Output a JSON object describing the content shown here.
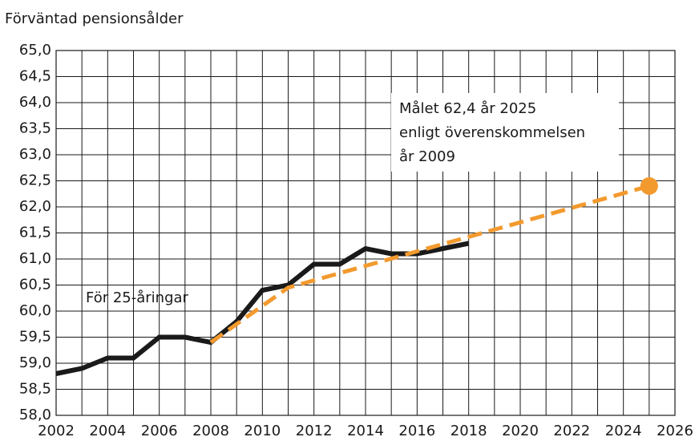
{
  "chart_data": {
    "type": "line",
    "title": "Förväntad pensionsålder",
    "xlim": [
      2002,
      2026
    ],
    "xticks": [
      2002,
      2004,
      2006,
      2008,
      2010,
      2012,
      2014,
      2016,
      2018,
      2020,
      2022,
      2024,
      2026
    ],
    "ylim": [
      58,
      65
    ],
    "yticks": [
      {
        "value": 58,
        "label": "58,0"
      },
      {
        "value": 58.5,
        "label": "58,5"
      },
      {
        "value": 59,
        "label": "59,0"
      },
      {
        "value": 59.5,
        "label": "59,5"
      },
      {
        "value": 60,
        "label": "60,0"
      },
      {
        "value": 60.5,
        "label": "60,5"
      },
      {
        "value": 61,
        "label": "61,0"
      },
      {
        "value": 61.5,
        "label": "61,5"
      },
      {
        "value": 62,
        "label": "62,0"
      },
      {
        "value": 62.5,
        "label": "62,5"
      },
      {
        "value": 63,
        "label": "63,0"
      },
      {
        "value": 63.5,
        "label": "63,5"
      },
      {
        "value": 64,
        "label": "64,0"
      },
      {
        "value": 64.5,
        "label": "64,5"
      },
      {
        "value": 65,
        "label": "65,0"
      }
    ],
    "grid": true,
    "series": [
      {
        "color": "#1a1a1a",
        "dashed": false,
        "end_marker": false,
        "x": [
          2002,
          2003,
          2004,
          2005,
          2006,
          2007,
          2008,
          2009,
          2010,
          2011,
          2012,
          2013,
          2014,
          2015,
          2016,
          2017,
          2018
        ],
        "values": [
          58.8,
          58.9,
          59.1,
          59.1,
          59.5,
          59.5,
          59.4,
          59.8,
          60.4,
          60.5,
          60.9,
          60.9,
          61.2,
          61.1,
          61.1,
          61.2,
          61.3
        ]
      },
      {
        "color": "#f39a2e",
        "dashed": true,
        "end_marker": true,
        "x": [
          2008,
          2011,
          2025
        ],
        "values": [
          59.4,
          60.45,
          62.4
        ]
      }
    ],
    "annotations": [
      {
        "lines": [
          "Målet 62,4 år 2025",
          "enligt överenskommelsen",
          "år 2009"
        ]
      },
      {
        "lines": [
          "För 25-åringar"
        ]
      }
    ]
  }
}
